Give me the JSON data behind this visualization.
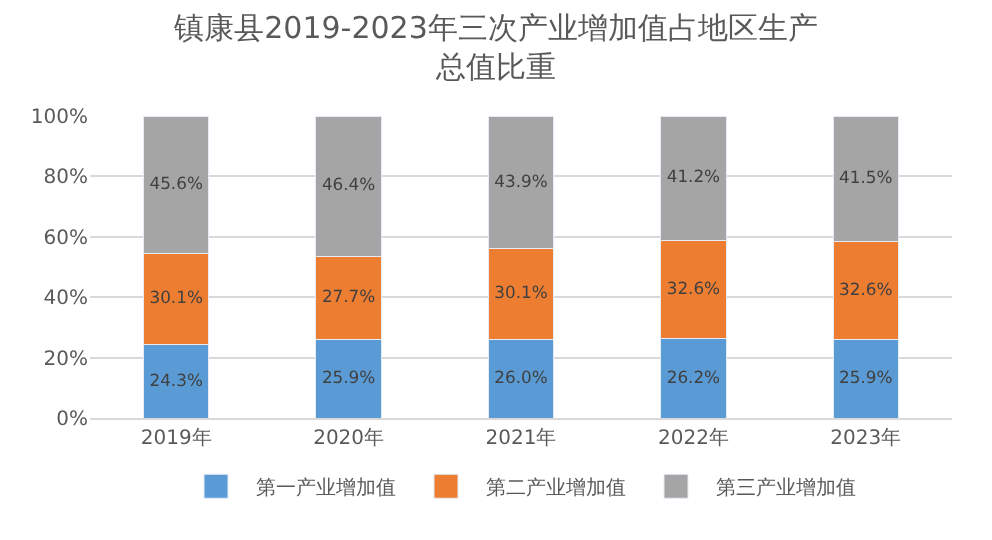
{
  "chart_data": {
    "type": "bar",
    "stacked": true,
    "title": "镇康县2019-2023年三次产业增加值占地区生产总值比重",
    "categories": [
      "2019年",
      "2020年",
      "2021年",
      "2022年",
      "2023年"
    ],
    "series": [
      {
        "name": "第一产业增加值",
        "color": "#5b9bd5",
        "values": [
          24.3,
          25.9,
          26.0,
          26.2,
          25.9
        ],
        "value_labels": [
          "24.3%",
          "25.9%",
          "26.0%",
          "26.2%",
          "25.9%"
        ]
      },
      {
        "name": "第二产业增加值",
        "color": "#ed7d31",
        "values": [
          30.1,
          27.7,
          30.1,
          32.6,
          32.6
        ],
        "value_labels": [
          "30.1%",
          "27.7%",
          "30.1%",
          "32.6%",
          "32.6%"
        ]
      },
      {
        "name": "第三产业增加值",
        "color": "#a5a5a5",
        "values": [
          45.6,
          46.4,
          43.9,
          41.2,
          41.5
        ],
        "value_labels": [
          "45.6%",
          "46.4%",
          "43.9%",
          "41.2%",
          "41.5%"
        ]
      }
    ],
    "ylim": [
      0,
      100
    ],
    "yticks": [
      {
        "value": 0,
        "label": "0%"
      },
      {
        "value": 20,
        "label": "20%"
      },
      {
        "value": 40,
        "label": "40%"
      },
      {
        "value": 60,
        "label": "60%"
      },
      {
        "value": 80,
        "label": "80%"
      },
      {
        "value": 100,
        "label": "100%"
      }
    ],
    "grid": "y",
    "legend": "bottom"
  }
}
